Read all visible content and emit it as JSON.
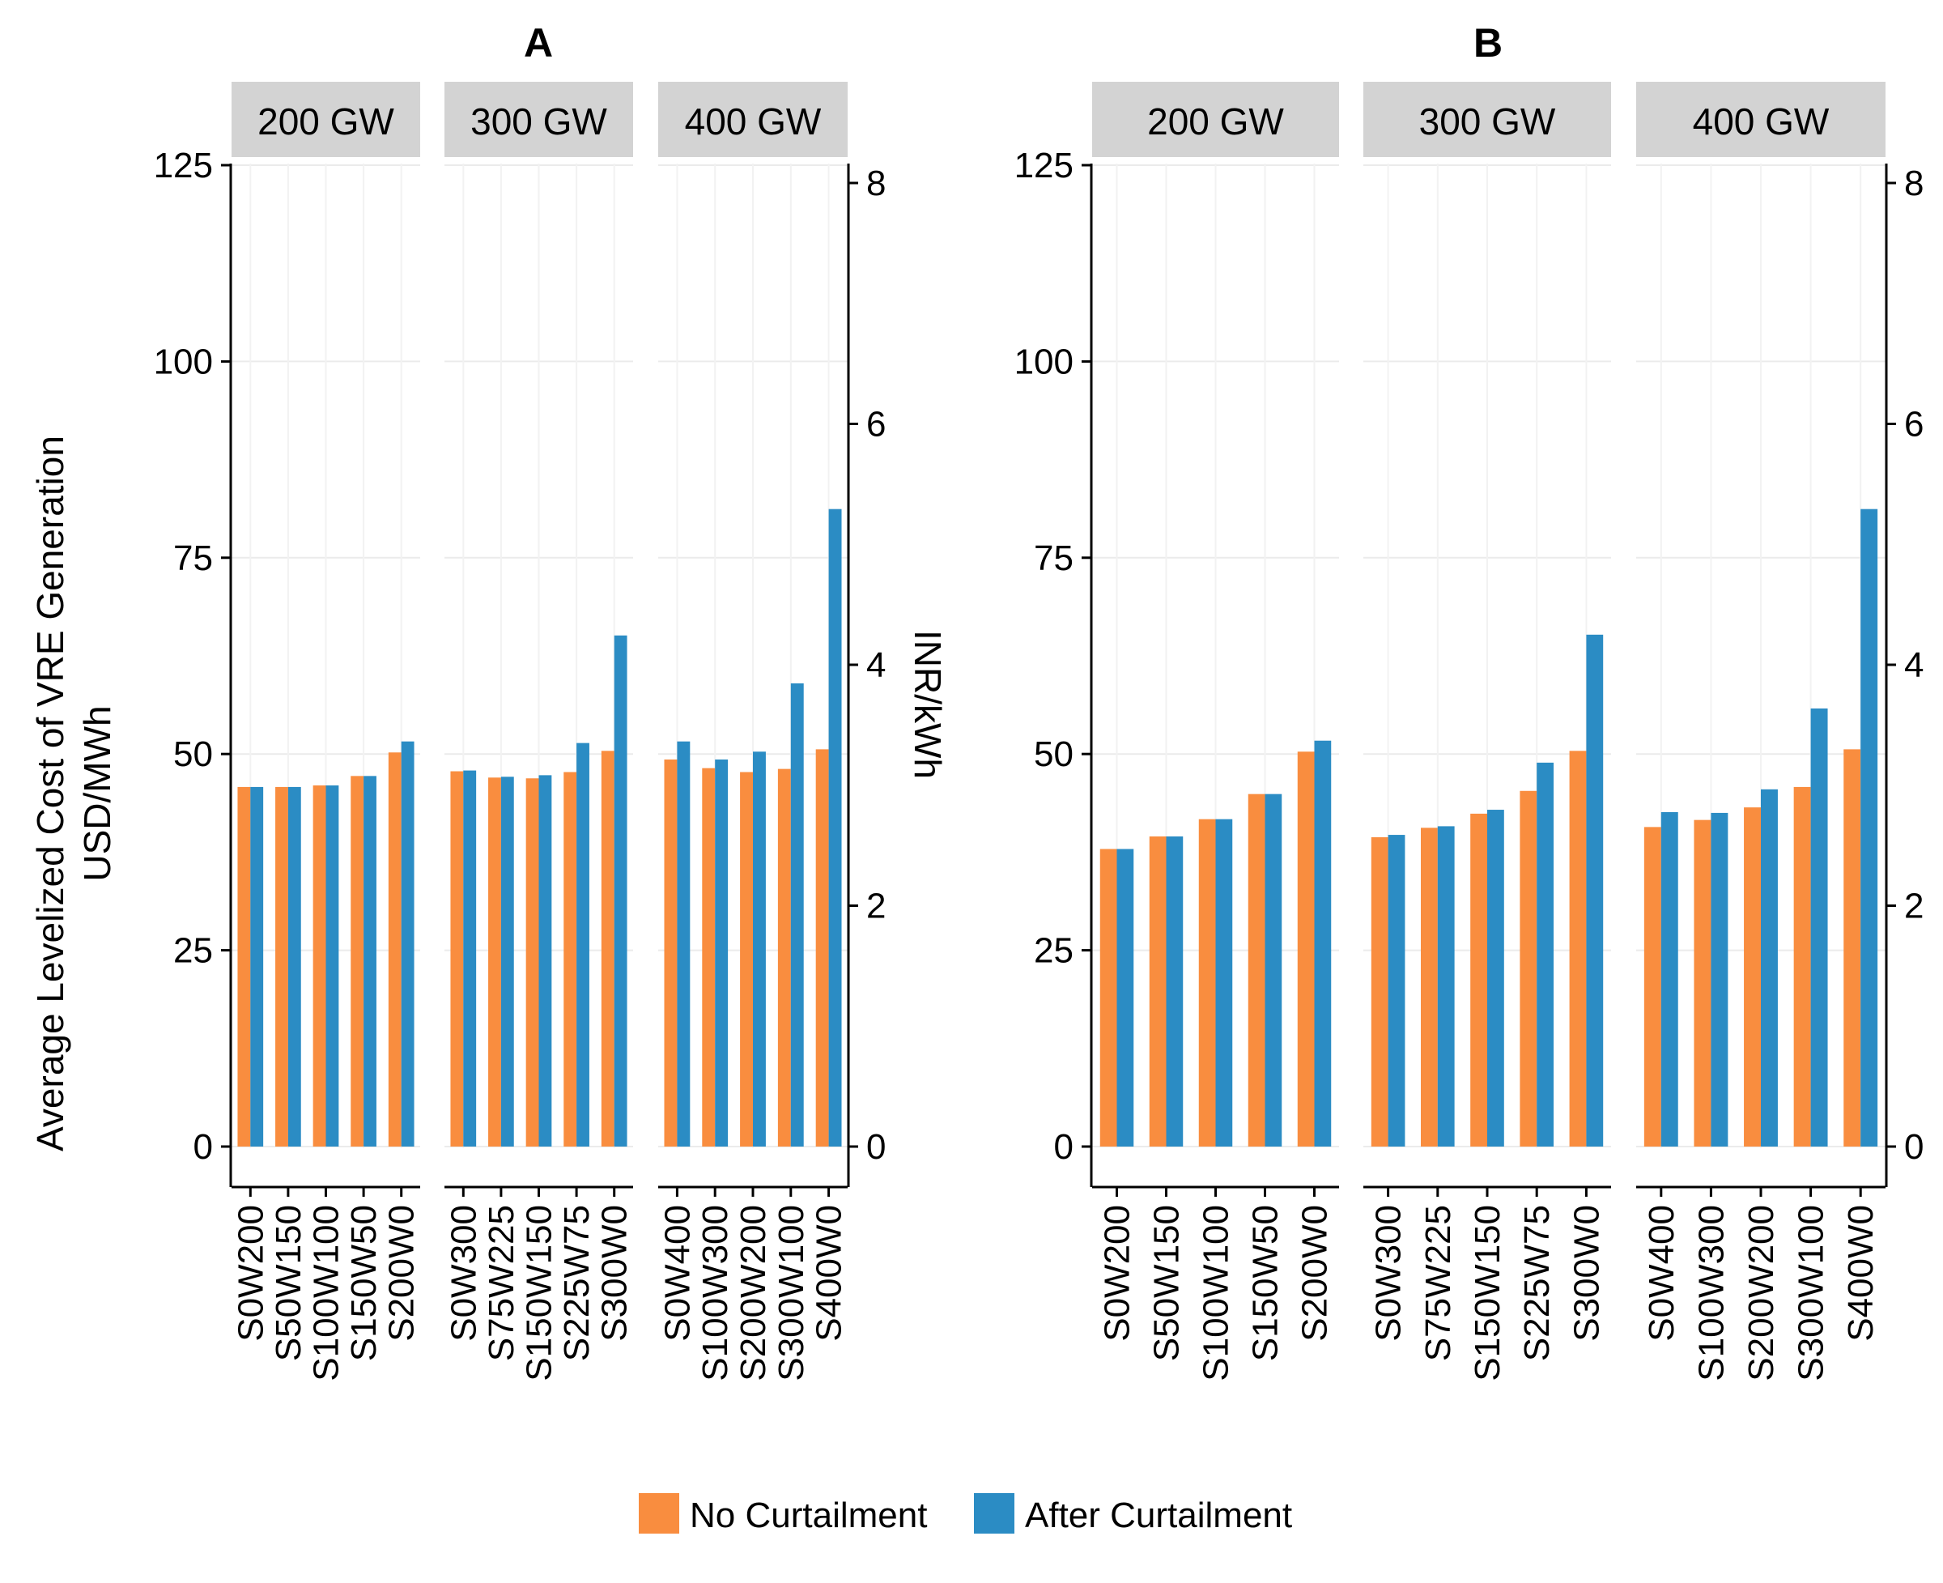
{
  "y_axis_title_line1": "Average Levelized Cost of VRE Generation",
  "y_axis_title_line2": "USD/MWh",
  "secondary_axis_title": "INR/kWh",
  "legend": [
    {
      "label": "No Curtailment",
      "color": "#F98D3F"
    },
    {
      "label": "After Curtailment",
      "color": "#2B8CC4"
    }
  ],
  "colors": {
    "no_curtailment": "#F98D3F",
    "after_curtailment": "#2B8CC4",
    "strip_bg": "#D3D3D3"
  },
  "chart_data": [
    {
      "type": "bar",
      "title": "A",
      "ylim": [
        0,
        125
      ],
      "yticks": [
        0,
        25,
        50,
        75,
        100,
        125
      ],
      "secondary_ylim": [
        0,
        8
      ],
      "secondary_yticks": [
        0,
        2,
        4,
        6,
        8
      ],
      "secondary_ylabel": "INR/kWh",
      "facets": [
        {
          "label": "200 GW",
          "categories": [
            "S0W200",
            "S50W150",
            "S100W100",
            "S150W50",
            "S200W0"
          ],
          "series": [
            {
              "name": "No Curtailment",
              "values": [
                45.8,
                45.8,
                46.0,
                47.2,
                50.2
              ]
            },
            {
              "name": "After Curtailment",
              "values": [
                45.8,
                45.8,
                46.0,
                47.2,
                51.6
              ]
            }
          ]
        },
        {
          "label": "300 GW",
          "categories": [
            "S0W300",
            "S75W225",
            "S150W150",
            "S225W75",
            "S300W0"
          ],
          "series": [
            {
              "name": "No Curtailment",
              "values": [
                47.8,
                47.0,
                46.9,
                47.7,
                50.4
              ]
            },
            {
              "name": "After Curtailment",
              "values": [
                47.9,
                47.1,
                47.3,
                51.4,
                65.1
              ]
            }
          ]
        },
        {
          "label": "400 GW",
          "categories": [
            "S0W400",
            "S100W300",
            "S200W200",
            "S300W100",
            "S400W0"
          ],
          "series": [
            {
              "name": "No Curtailment",
              "values": [
                49.3,
                48.2,
                47.7,
                48.1,
                50.6
              ]
            },
            {
              "name": "After Curtailment",
              "values": [
                51.6,
                49.3,
                50.3,
                59.0,
                81.2
              ]
            }
          ]
        }
      ]
    },
    {
      "type": "bar",
      "title": "B",
      "ylim": [
        0,
        125
      ],
      "yticks": [
        0,
        25,
        50,
        75,
        100,
        125
      ],
      "secondary_ylim": [
        0,
        8
      ],
      "secondary_yticks": [
        0,
        2,
        4,
        6,
        8
      ],
      "secondary_ylabel": "",
      "facets": [
        {
          "label": "200 GW",
          "categories": [
            "S0W200",
            "S50W150",
            "S100W100",
            "S150W50",
            "S200W0"
          ],
          "series": [
            {
              "name": "No Curtailment",
              "values": [
                37.9,
                39.5,
                41.7,
                44.9,
                50.3
              ]
            },
            {
              "name": "After Curtailment",
              "values": [
                37.9,
                39.5,
                41.7,
                44.9,
                51.7
              ]
            }
          ]
        },
        {
          "label": "300 GW",
          "categories": [
            "S0W300",
            "S75W225",
            "S150W150",
            "S225W75",
            "S300W0"
          ],
          "series": [
            {
              "name": "No Curtailment",
              "values": [
                39.4,
                40.6,
                42.4,
                45.3,
                50.4
              ]
            },
            {
              "name": "After Curtailment",
              "values": [
                39.7,
                40.8,
                42.9,
                48.9,
                65.2
              ]
            }
          ]
        },
        {
          "label": "400 GW",
          "categories": [
            "S0W400",
            "S100W300",
            "S200W200",
            "S300W100",
            "S400W0"
          ],
          "series": [
            {
              "name": "No Curtailment",
              "values": [
                40.7,
                41.6,
                43.2,
                45.8,
                50.6
              ]
            },
            {
              "name": "After Curtailment",
              "values": [
                42.6,
                42.5,
                45.5,
                55.8,
                81.2
              ]
            }
          ]
        }
      ]
    }
  ]
}
